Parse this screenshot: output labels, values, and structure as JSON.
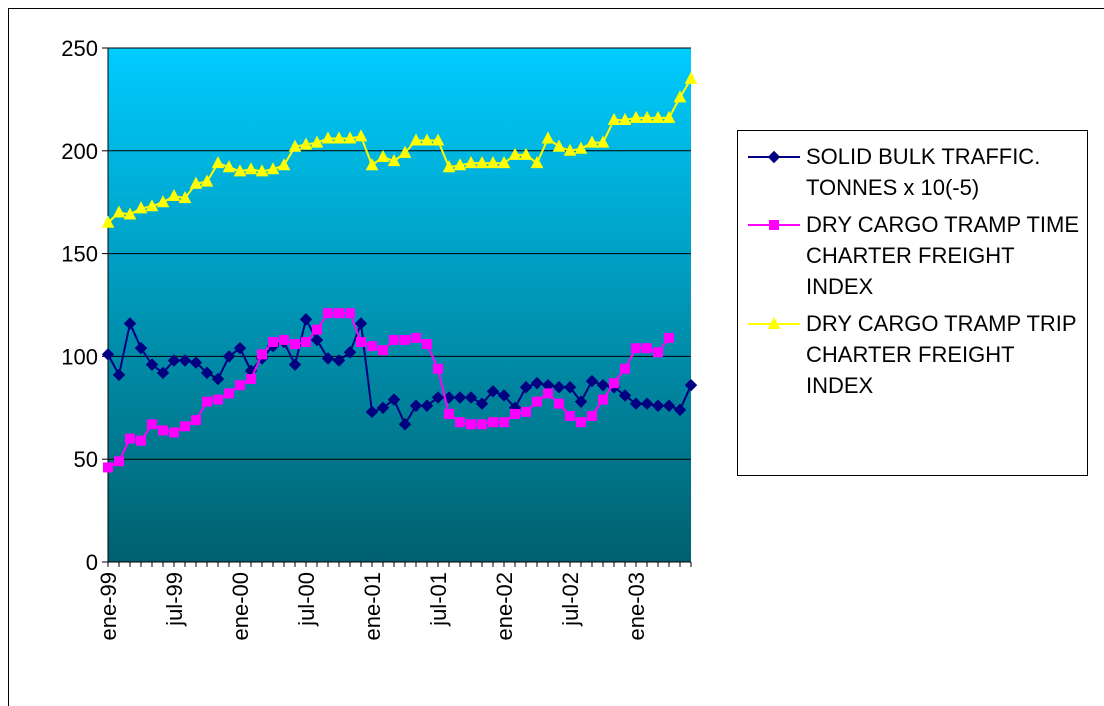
{
  "chart_data": {
    "type": "line",
    "categories": [
      "ene-99",
      null,
      null,
      null,
      null,
      null,
      "jul-99",
      null,
      null,
      null,
      null,
      null,
      "ene-00",
      null,
      null,
      null,
      null,
      null,
      "jul-00",
      null,
      null,
      null,
      null,
      null,
      "ene-01",
      null,
      null,
      null,
      null,
      null,
      "jul-01",
      null,
      null,
      null,
      null,
      null,
      "ene-02",
      null,
      null,
      null,
      null,
      null,
      "jul-02",
      null,
      null,
      null,
      null,
      null,
      "ene-03",
      null,
      null,
      null,
      null,
      null
    ],
    "series": [
      {
        "name": "SOLID BULK TRAFFIC. TONNES x 10(-5)",
        "color": "#000080",
        "marker": "diamond",
        "values": [
          101,
          91,
          116,
          104,
          96,
          92,
          98,
          98,
          97,
          92,
          89,
          100,
          104,
          93,
          99,
          105,
          107,
          96,
          118,
          108,
          99,
          98,
          102,
          116,
          73,
          75,
          79,
          67,
          76,
          76,
          80,
          80,
          80,
          80,
          77,
          83,
          81,
          75,
          85,
          87,
          86,
          85,
          85,
          78,
          88,
          86,
          85,
          81,
          77,
          77,
          76,
          76,
          74,
          86
        ]
      },
      {
        "name": "DRY CARGO TRAMP TIME CHARTER FREIGHT INDEX",
        "color": "#ff00ff",
        "marker": "square",
        "values": [
          46,
          49,
          60,
          59,
          67,
          64,
          63,
          66,
          69,
          78,
          79,
          82,
          86,
          89,
          101,
          107,
          108,
          106,
          107,
          113,
          121,
          121,
          121,
          107,
          105,
          103,
          108,
          108,
          109,
          106,
          94,
          72,
          68,
          67,
          67,
          68,
          68,
          72,
          73,
          78,
          82,
          77,
          71,
          68,
          71,
          79,
          87,
          94,
          104,
          104,
          102,
          109,
          null,
          null
        ]
      },
      {
        "name": "DRY CARGO TRAMP TRIP CHARTER FREIGHT INDEX",
        "color": "#ffff00",
        "marker": "triangle",
        "values": [
          165,
          170,
          169,
          172,
          173,
          175,
          178,
          177,
          184,
          185,
          194,
          192,
          190,
          191,
          190,
          191,
          193,
          202,
          203,
          204,
          206,
          206,
          206,
          207,
          193,
          197,
          195,
          199,
          205,
          205,
          205,
          192,
          193,
          194,
          194,
          194,
          194,
          198,
          198,
          194,
          206,
          202,
          200,
          201,
          204,
          204,
          215,
          215,
          216,
          216,
          216,
          216,
          226,
          235
        ]
      }
    ],
    "ylim": [
      0,
      250
    ],
    "yticks": [
      0,
      50,
      100,
      150,
      200,
      250
    ],
    "grid": true
  }
}
